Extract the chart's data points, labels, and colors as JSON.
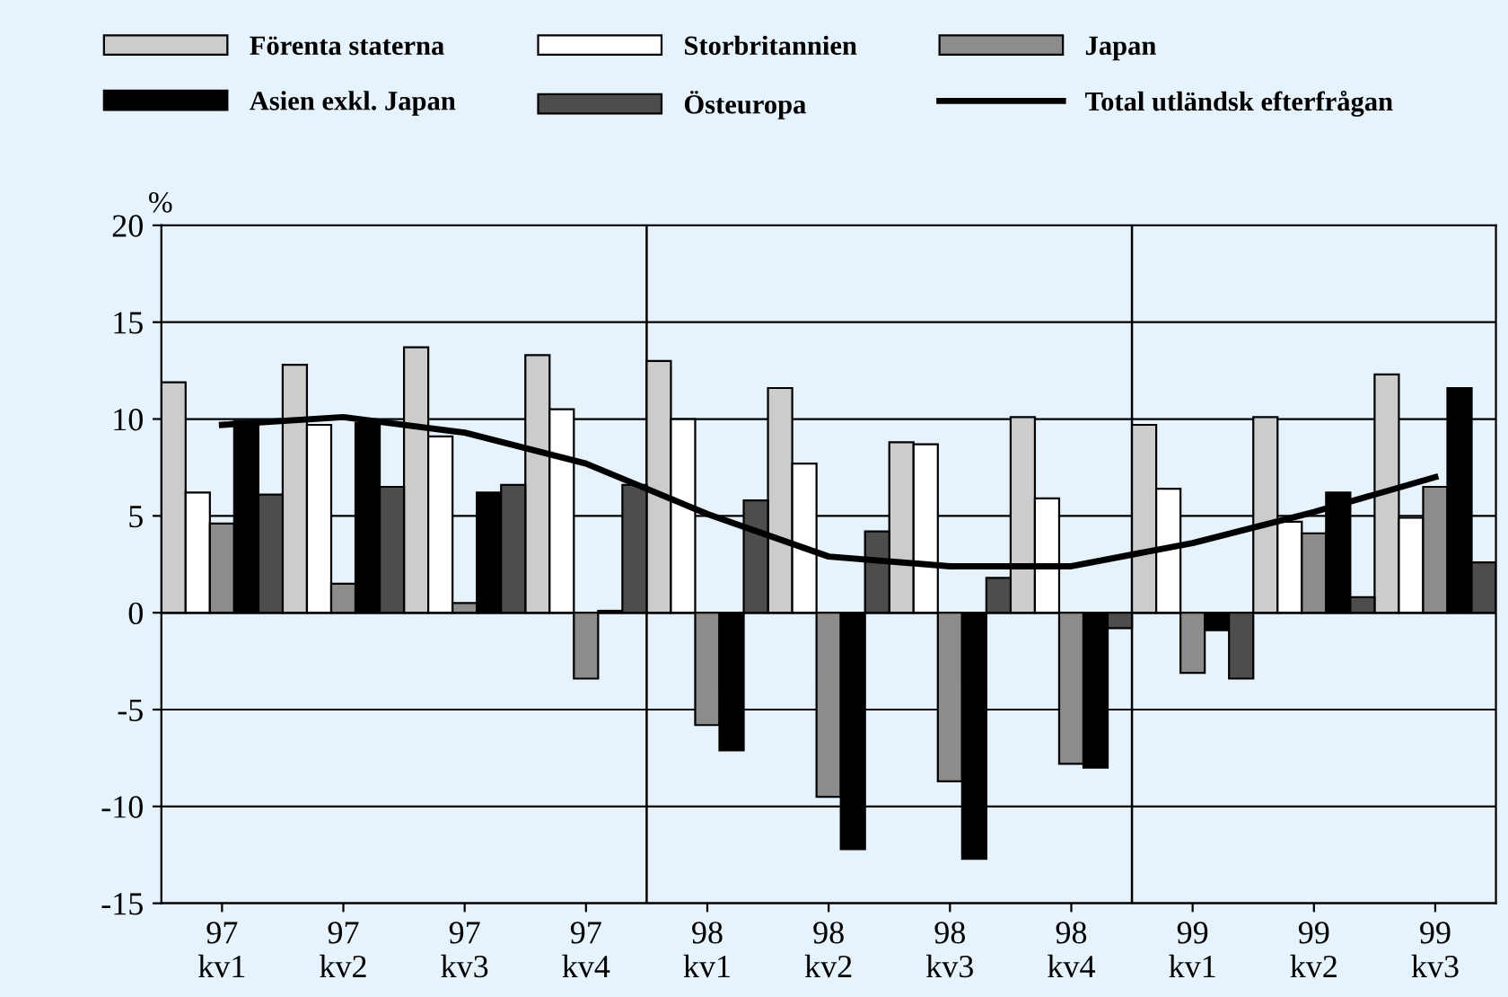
{
  "chart_data": {
    "type": "bar",
    "ylabel": "%",
    "categories": [
      "97\nkv1",
      "97\nkv2",
      "97\nkv3",
      "97\nkv4",
      "98\nkv1",
      "98\nkv2",
      "98\nkv3",
      "98\nkv4",
      "99\nkv1",
      "99\nkv2",
      "99\nkv3"
    ],
    "series": [
      {
        "name": "Förenta staterna",
        "color": "#cccccc",
        "values": [
          11.9,
          12.8,
          13.7,
          13.3,
          13.0,
          11.6,
          8.8,
          10.1,
          9.7,
          10.1,
          12.3
        ]
      },
      {
        "name": "Storbritannien",
        "color": "#ffffff",
        "values": [
          6.2,
          9.7,
          9.1,
          10.5,
          10.0,
          7.7,
          8.7,
          5.9,
          6.4,
          4.7,
          4.9
        ]
      },
      {
        "name": "Japan",
        "color": "#8c8c8c",
        "values": [
          4.6,
          1.5,
          0.5,
          -3.4,
          -5.8,
          -9.5,
          -8.7,
          -7.8,
          -3.1,
          4.1,
          6.5
        ]
      },
      {
        "name": "Asien exkl. Japan",
        "color": "#000000",
        "values": [
          9.9,
          9.8,
          6.2,
          0.1,
          -7.1,
          -12.2,
          -12.7,
          -8.0,
          -0.9,
          6.2,
          11.6
        ]
      },
      {
        "name": "Östeuropa",
        "color": "#4d4d4d",
        "values": [
          6.1,
          6.5,
          6.6,
          6.6,
          5.8,
          4.2,
          1.8,
          -0.8,
          -3.4,
          0.8,
          2.6
        ]
      },
      {
        "name": "Total utländsk efterfrågan",
        "type": "line",
        "color": "#000000",
        "values": [
          9.7,
          10.1,
          9.3,
          7.7,
          5.1,
          2.9,
          2.4,
          2.4,
          3.6,
          5.2,
          7.0
        ]
      }
    ],
    "ylim": [
      -15,
      20
    ],
    "yticks": [
      -15,
      -10,
      -5,
      0,
      5,
      10,
      15,
      20
    ],
    "grid": "y",
    "legend": "top"
  }
}
